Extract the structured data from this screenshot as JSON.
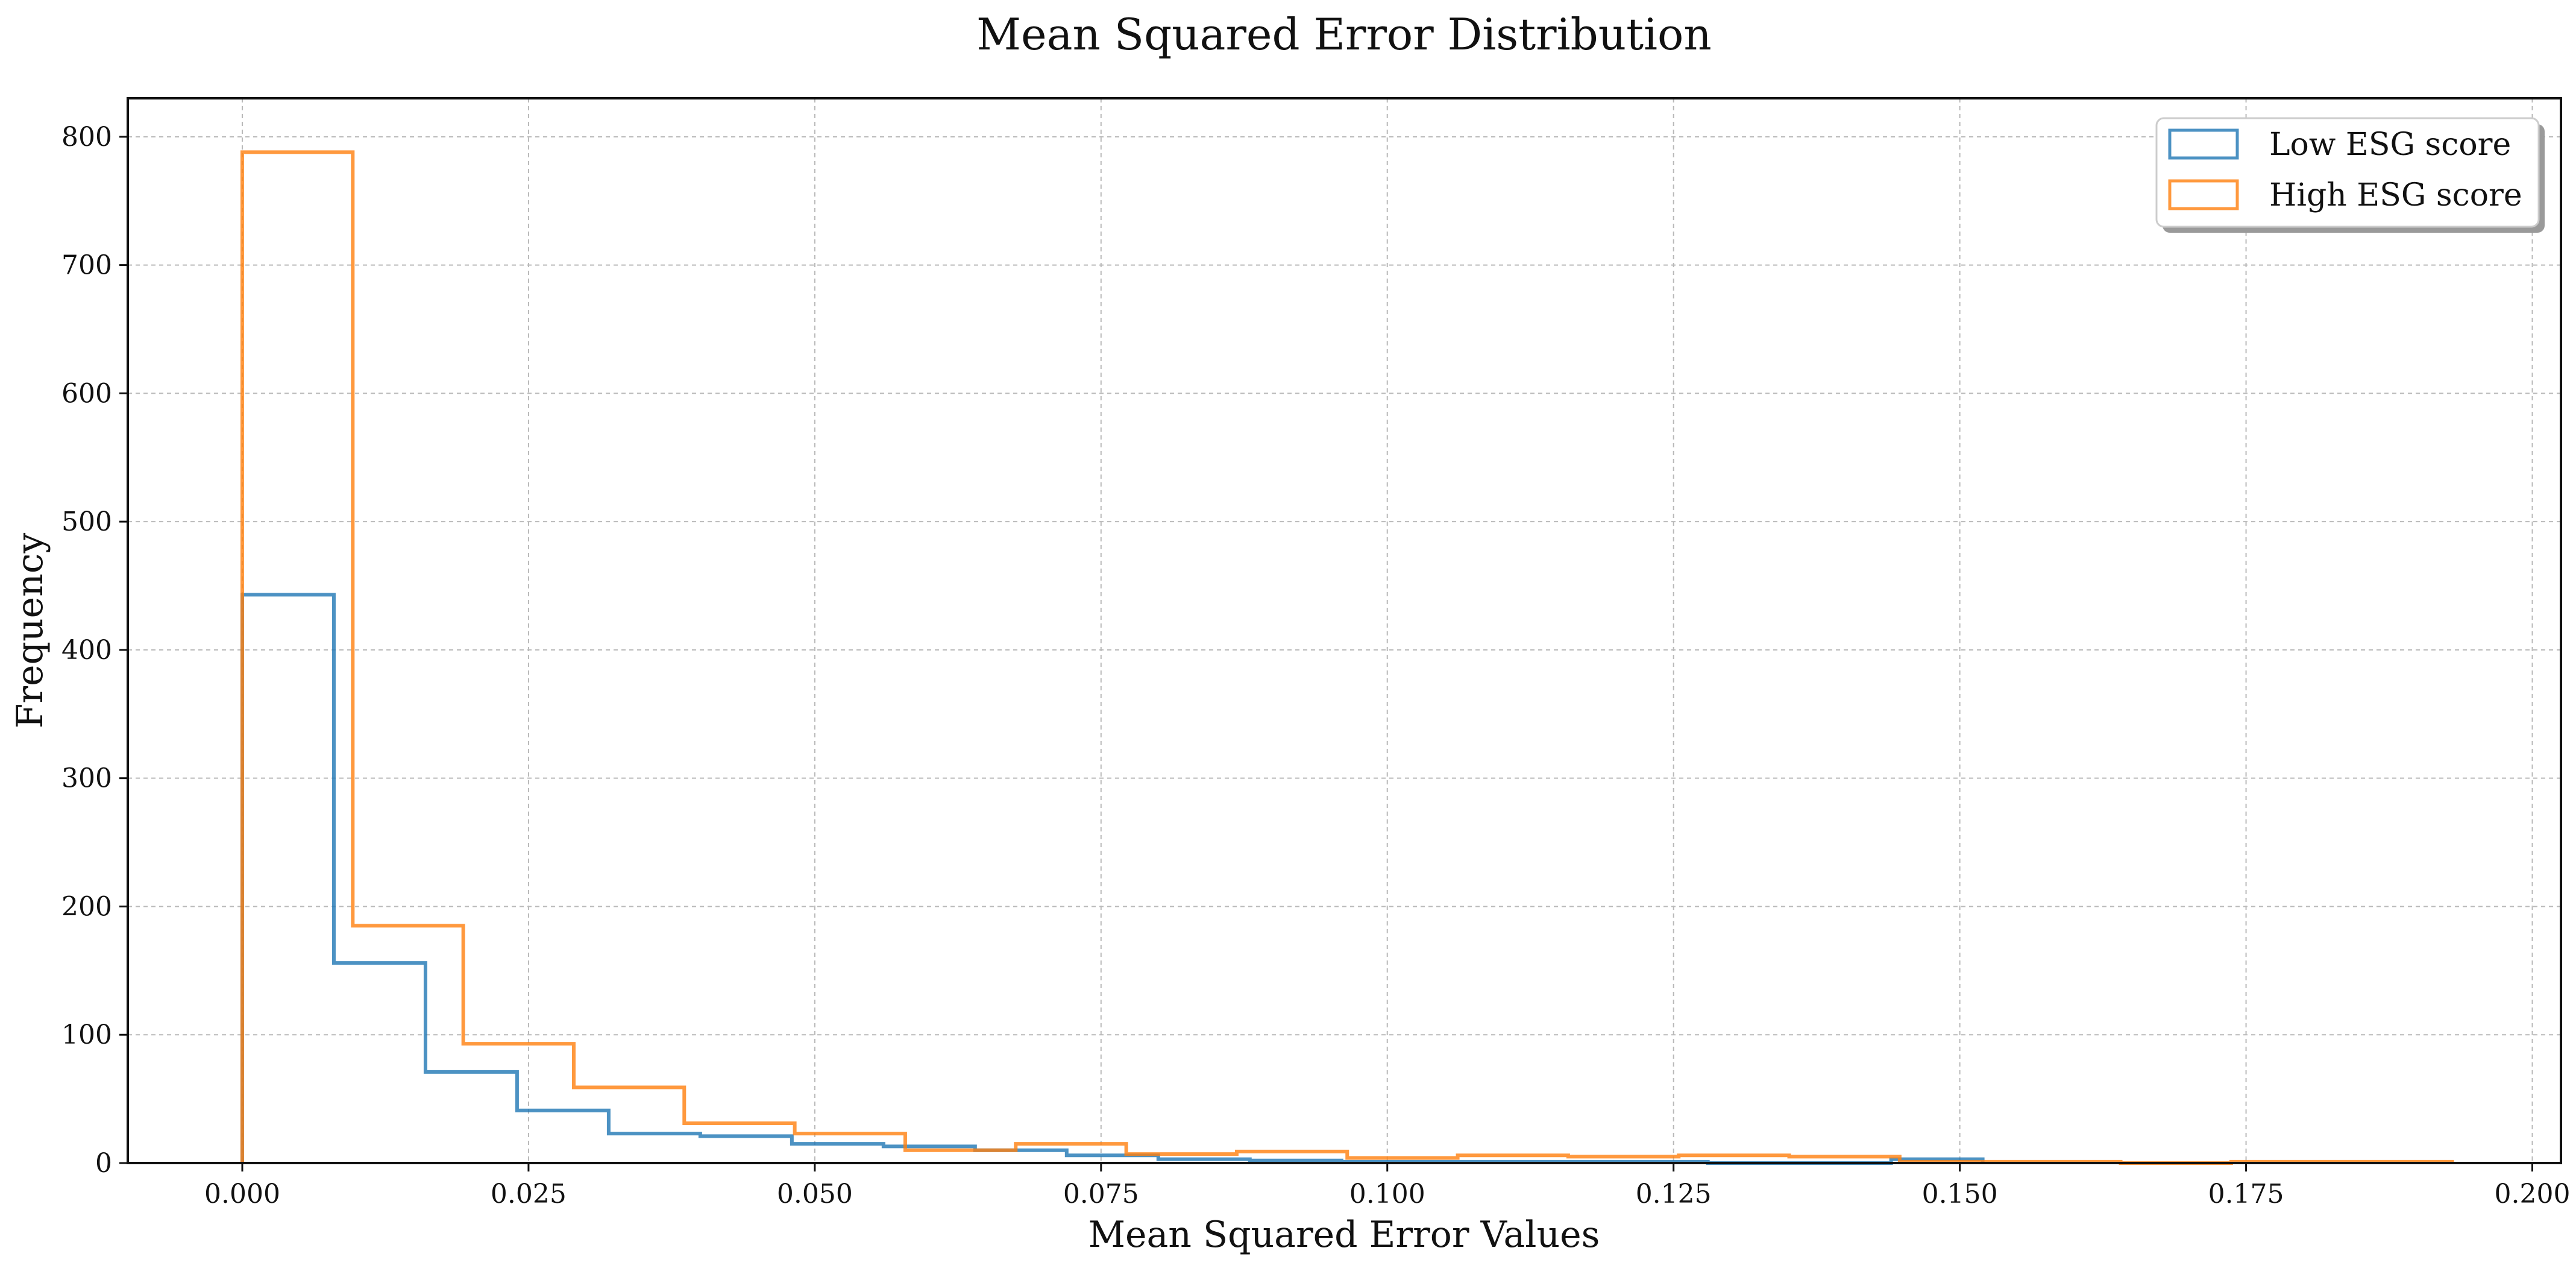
{
  "chart_data": {
    "type": "histogram",
    "title": "Mean Squared Error Distribution",
    "xlabel": "Mean Squared Error Values",
    "ylabel": "Frequency",
    "xlim": [
      -0.01,
      0.2025
    ],
    "ylim": [
      0,
      830
    ],
    "grid": true,
    "legend_position": "upper-right",
    "xticks": [
      0.0,
      0.025,
      0.05,
      0.075,
      0.1,
      0.125,
      0.15,
      0.175,
      0.2
    ],
    "xtick_labels": [
      "0.000",
      "0.025",
      "0.050",
      "0.075",
      "0.100",
      "0.125",
      "0.150",
      "0.175",
      "0.200"
    ],
    "yticks": [
      0,
      100,
      200,
      300,
      400,
      500,
      600,
      700,
      800
    ],
    "ytick_labels": [
      "0",
      "100",
      "200",
      "300",
      "400",
      "500",
      "600",
      "700",
      "800"
    ],
    "series": [
      {
        "name": "Low ESG score",
        "color": "#1f77b4",
        "bin_edges": [
          0.0,
          0.008,
          0.016,
          0.024,
          0.032,
          0.04,
          0.048,
          0.056,
          0.064,
          0.072,
          0.08,
          0.088,
          0.096,
          0.104,
          0.112,
          0.12,
          0.128,
          0.136,
          0.144,
          0.152
        ],
        "counts": [
          443,
          156,
          71,
          41,
          23,
          21,
          15,
          13,
          10,
          6,
          3,
          2,
          1,
          1,
          1,
          1,
          0,
          0,
          3
        ]
      },
      {
        "name": "High ESG score",
        "color": "#ff7f0e",
        "bin_edges": [
          0.0,
          0.00965,
          0.0193,
          0.02895,
          0.0386,
          0.04825,
          0.0579,
          0.06755,
          0.0772,
          0.08685,
          0.0965,
          0.10615,
          0.1158,
          0.12545,
          0.1351,
          0.14475,
          0.1544,
          0.16405,
          0.1737,
          0.18335,
          0.193
        ],
        "counts": [
          788,
          185,
          93,
          59,
          31,
          23,
          10,
          15,
          7,
          9,
          4,
          6,
          5,
          6,
          5,
          1,
          1,
          0,
          1,
          1
        ]
      }
    ]
  }
}
